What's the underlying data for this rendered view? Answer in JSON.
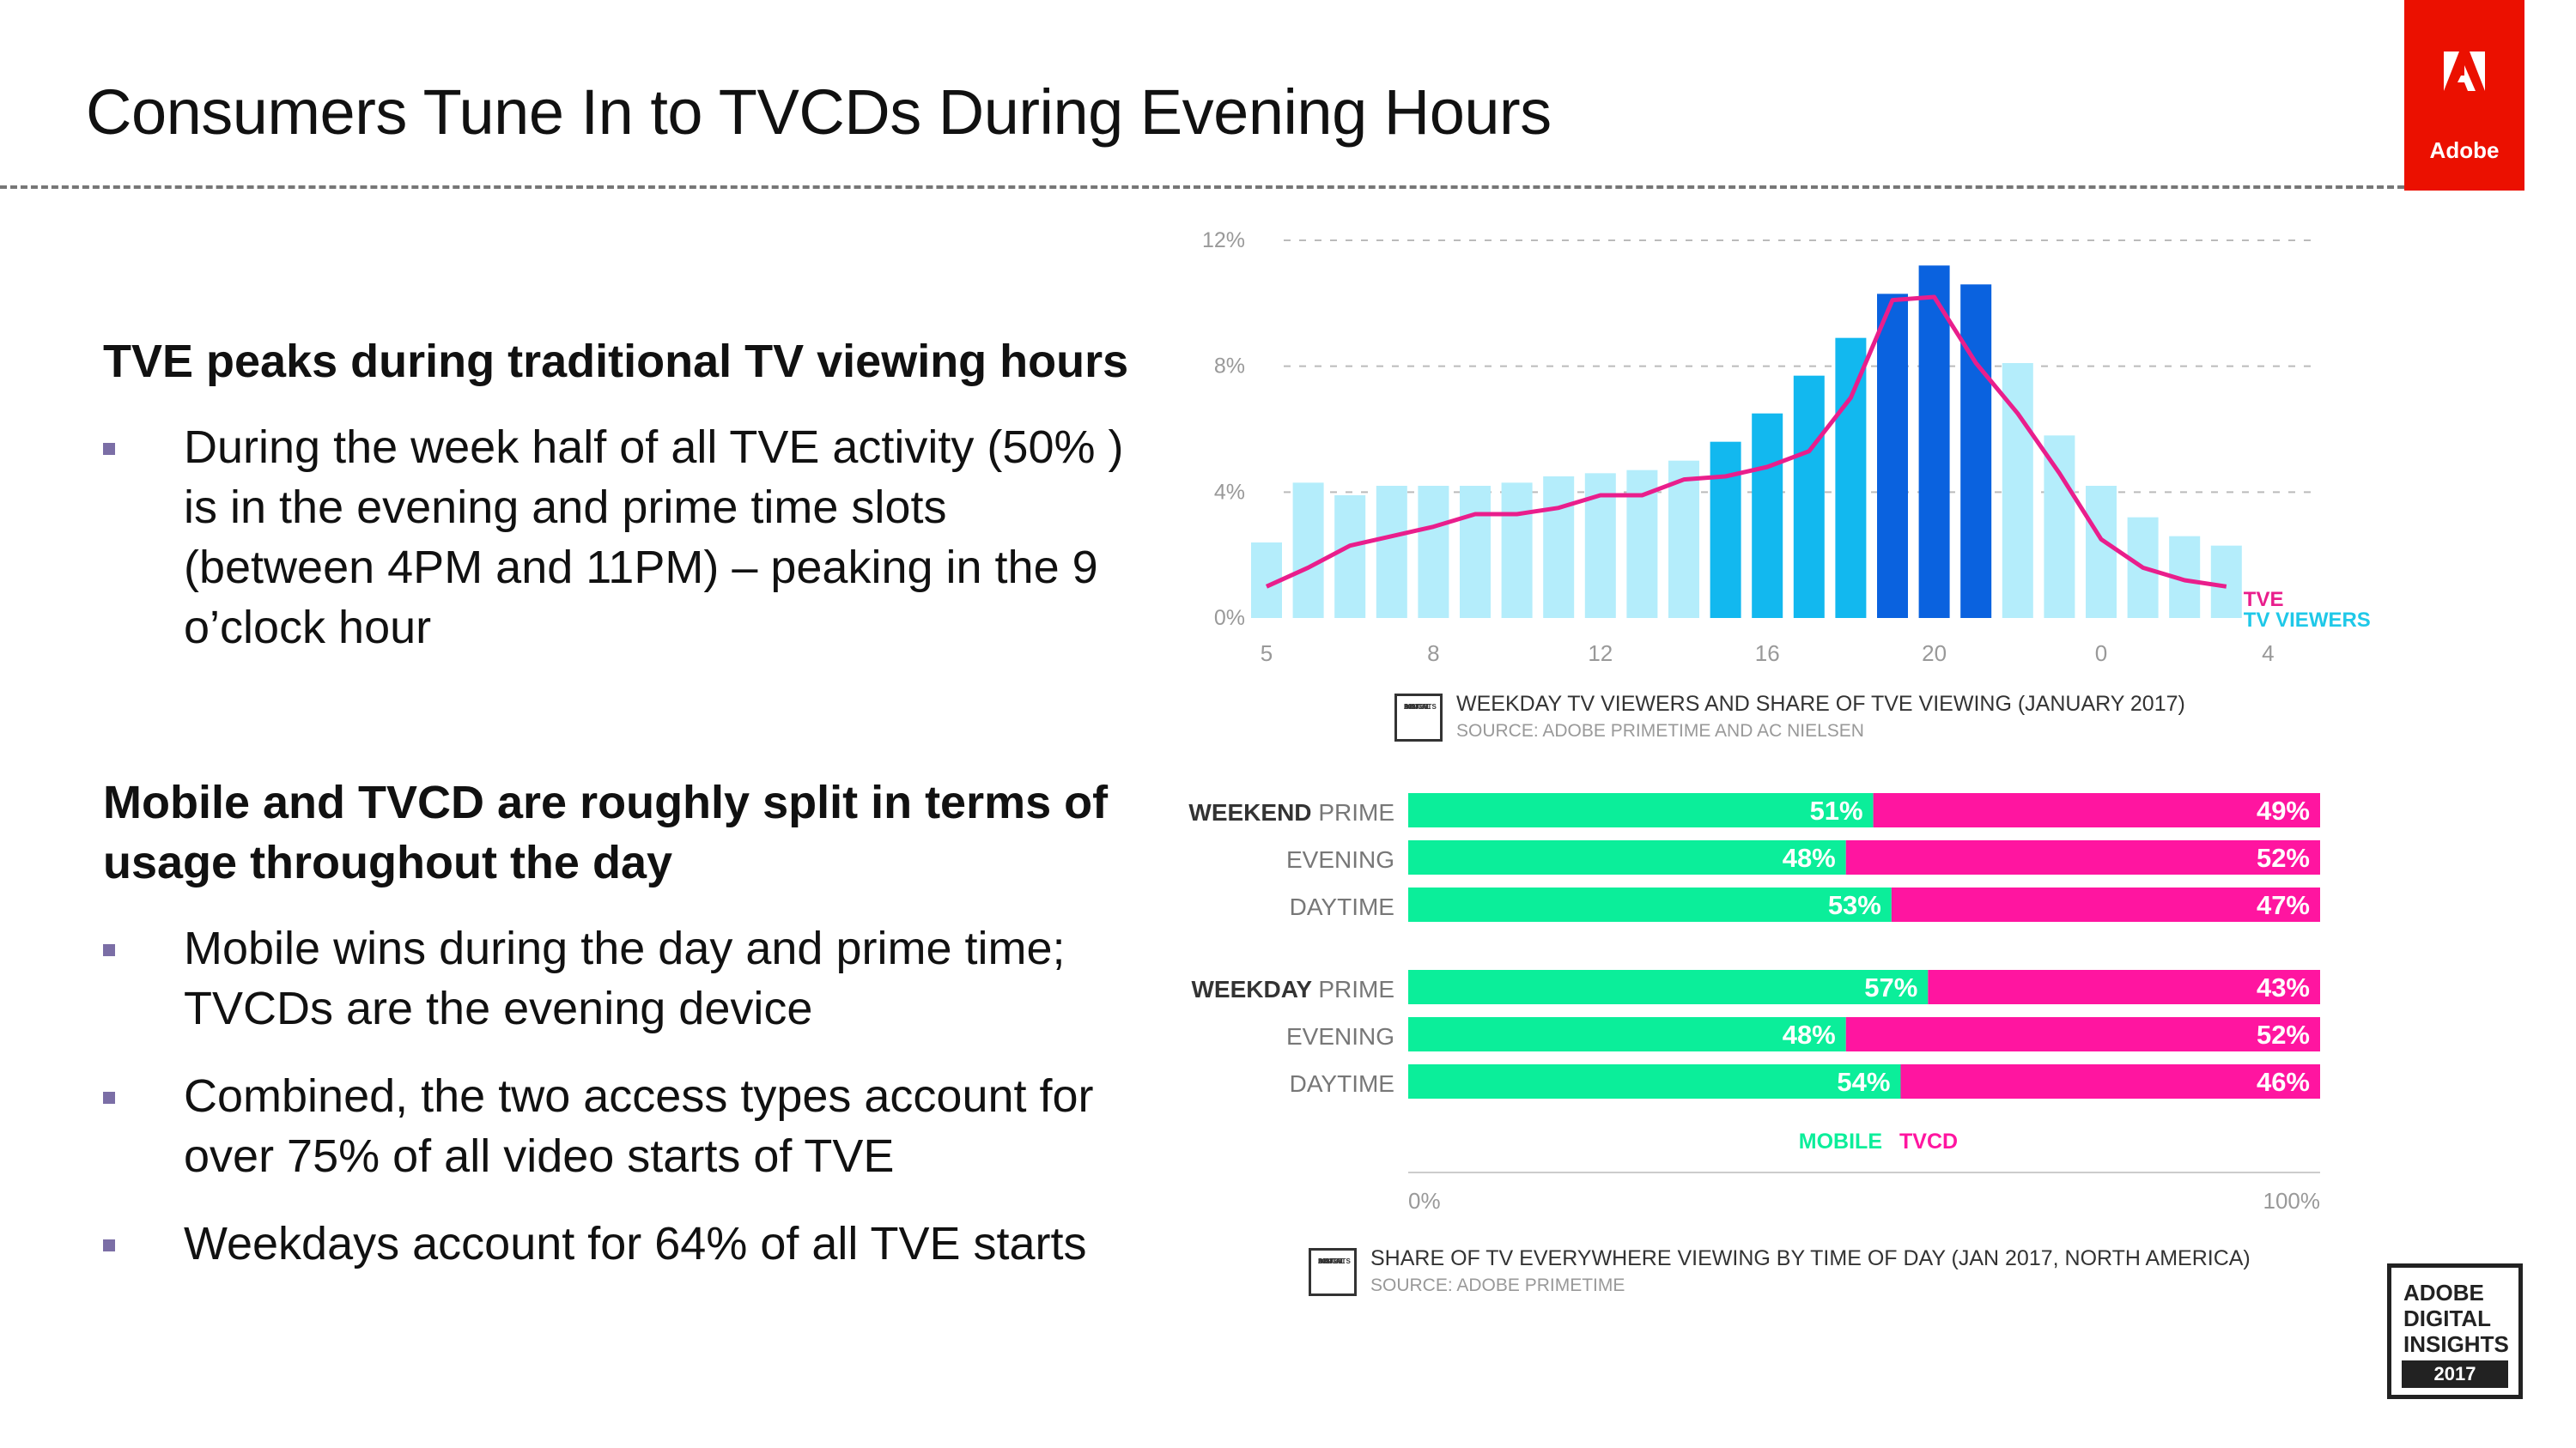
{
  "title": "Consumers Tune In to TVCDs During Evening Hours",
  "brand": {
    "name": "Adobe",
    "color": "#EB1000",
    "icon": "adobe-logo-icon"
  },
  "left": {
    "section1": {
      "heading": "TVE peaks during traditional TV viewing hours",
      "bullets": [
        [
          "During the week half of all TVE activity (50% )",
          "is in the evening and prime time slots",
          "(between 4PM and 11PM) – peaking in the 9",
          "o’clock hour"
        ]
      ]
    },
    "section2": {
      "heading": [
        "Mobile and TVCD are roughly split in terms of",
        "usage throughout the day"
      ],
      "bullets": [
        [
          "Mobile wins during the day and prime time;",
          "TVCDs are the evening device"
        ],
        [
          "Combined, the two access types account for",
          "over 75% of all video starts of TVE"
        ],
        [
          "Weekdays account for 64% of all TVE starts"
        ]
      ]
    }
  },
  "badge": {
    "lines": [
      "ADOBE",
      "DIGITAL",
      "INSIGHTS"
    ],
    "year": "2017"
  },
  "mini_badge": {
    "lines": [
      "ADOBE",
      "DIGITAL",
      "INSIGHTS",
      "2017"
    ]
  },
  "chart_data": [
    {
      "type": "bar",
      "title": "WEEKDAY TV VIEWERS AND SHARE OF TVE VIEWING (JANUARY 2017)",
      "subtitle": "SOURCE: ADOBE PRIMETIME AND AC NIELSEN",
      "yticks": [
        "0%",
        "4%",
        "8%",
        "12%"
      ],
      "ylim": [
        0,
        12
      ],
      "xticks": [
        {
          "i": 0,
          "label": "5"
        },
        {
          "i": 4,
          "label": "8"
        },
        {
          "i": 8,
          "label": "12"
        },
        {
          "i": 12,
          "label": "16"
        },
        {
          "i": 16,
          "label": "20"
        },
        {
          "i": 20,
          "label": "0"
        },
        {
          "i": 24,
          "label": "4"
        }
      ],
      "hours": [
        5,
        6,
        7,
        8,
        9,
        10,
        11,
        12,
        13,
        14,
        15,
        16,
        17,
        18,
        19,
        20,
        21,
        22,
        23,
        0,
        1,
        2,
        3,
        4
      ],
      "series": [
        {
          "name": "TV VIEWERS",
          "color": "#1FC8E8",
          "values": [
            2.4,
            4.3,
            3.9,
            4.2,
            4.2,
            4.2,
            4.3,
            4.5,
            4.6,
            4.7,
            5.0,
            5.6,
            6.5,
            7.7,
            8.9,
            10.3,
            11.2,
            10.6,
            8.1,
            5.8,
            4.2,
            3.2,
            2.6,
            2.3
          ],
          "colors": [
            "#B4EDFB",
            "#B4EDFB",
            "#B4EDFB",
            "#B4EDFB",
            "#B4EDFB",
            "#B4EDFB",
            "#B4EDFB",
            "#B4EDFB",
            "#B4EDFB",
            "#B4EDFB",
            "#B4EDFB",
            "#12B8EF",
            "#12B8EF",
            "#12B8EF",
            "#12B8EF",
            "#0A62DF",
            "#0A62DF",
            "#0A62DF",
            "#B4EDFB",
            "#B4EDFB",
            "#B4EDFB",
            "#B4EDFB",
            "#B4EDFB",
            "#B4EDFB"
          ]
        },
        {
          "name": "TVE",
          "color": "#E91E8C",
          "values": [
            1.0,
            1.6,
            2.3,
            2.6,
            2.9,
            3.3,
            3.3,
            3.5,
            3.9,
            3.9,
            4.4,
            4.5,
            4.8,
            5.3,
            7.0,
            10.1,
            10.2,
            8.1,
            6.5,
            4.6,
            2.5,
            1.6,
            1.2,
            1.0
          ]
        }
      ]
    },
    {
      "type": "bar",
      "orientation": "horizontal-stacked",
      "title": "SHARE OF TV EVERYWHERE VIEWING BY TIME OF DAY (JAN 2017, NORTH AMERICA)",
      "subtitle": "SOURCE: ADOBE PRIMETIME",
      "xticks": [
        "0%",
        "100%"
      ],
      "xlim": [
        0,
        100
      ],
      "groups": [
        {
          "name": "WEEKEND",
          "rows": [
            {
              "label": "PRIME",
              "mobile": 51,
              "tvcd": 49,
              "mobile_label": "51%",
              "tvcd_label": "49%"
            },
            {
              "label": "EVENING",
              "mobile": 48,
              "tvcd": 52,
              "mobile_label": "48%",
              "tvcd_label": "52%"
            },
            {
              "label": "DAYTIME",
              "mobile": 53,
              "tvcd": 47,
              "mobile_label": "53%",
              "tvcd_label": "47%"
            }
          ]
        },
        {
          "name": "WEEKDAY",
          "rows": [
            {
              "label": "PRIME",
              "mobile": 57,
              "tvcd": 43,
              "mobile_label": "57%",
              "tvcd_label": "43%"
            },
            {
              "label": "EVENING",
              "mobile": 48,
              "tvcd": 52,
              "mobile_label": "48%",
              "tvcd_label": "52%"
            },
            {
              "label": "DAYTIME",
              "mobile": 54,
              "tvcd": 46,
              "mobile_label": "54%",
              "tvcd_label": "46%"
            }
          ]
        }
      ],
      "legend": [
        {
          "name": "MOBILE",
          "color": "#0BEE9A"
        },
        {
          "name": "TVCD",
          "color": "#FF15A0"
        }
      ]
    }
  ]
}
